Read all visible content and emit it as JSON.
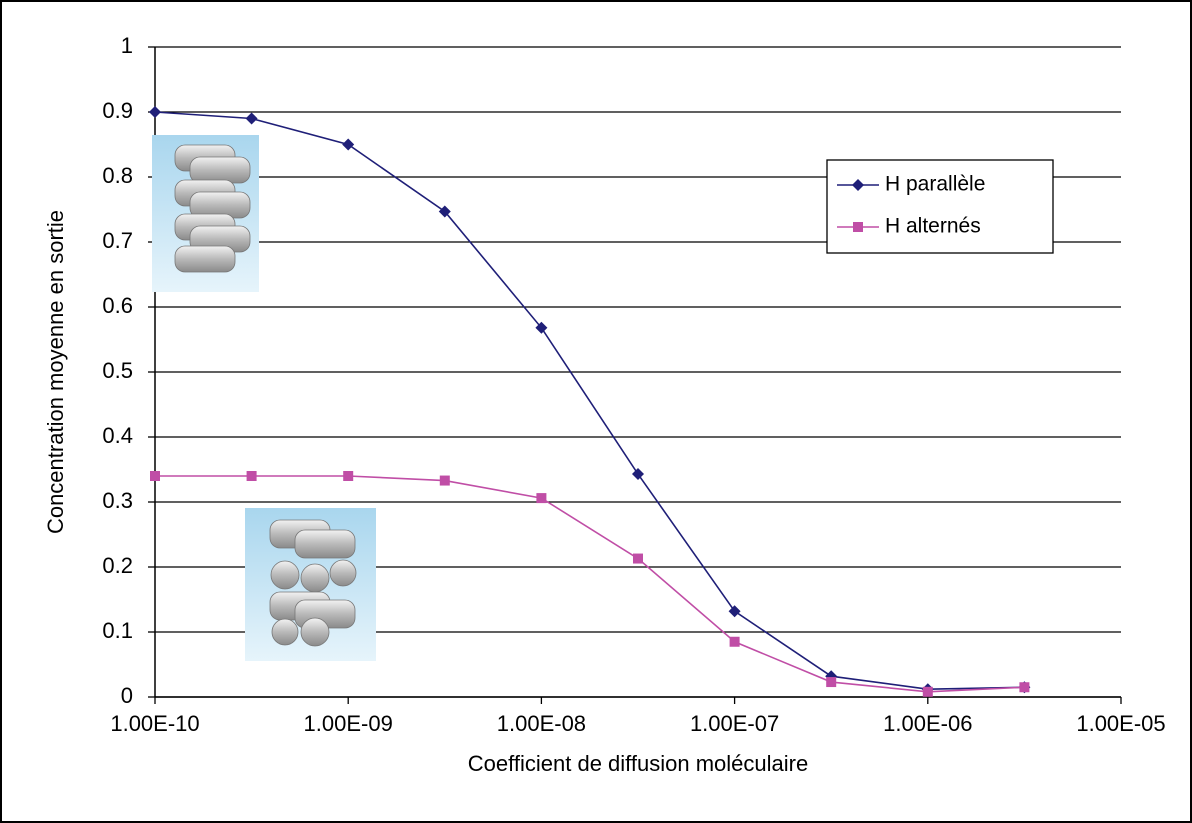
{
  "chart_data": {
    "type": "line",
    "x_label": "Coefficient de diffusion moléculaire",
    "y_label": "Concentration moyenne en sortie",
    "x": [
      1e-10,
      3.162e-10,
      1e-09,
      3.162e-09,
      1e-08,
      3.162e-08,
      1e-07,
      3.162e-07,
      1e-06,
      3.162e-06
    ],
    "series": [
      {
        "name": "H parallèle",
        "color": "#1f1f78",
        "marker": "diamond",
        "values": [
          0.9,
          0.89,
          0.85,
          0.747,
          0.568,
          0.343,
          0.132,
          0.032,
          0.012,
          0.015
        ]
      },
      {
        "name": "H alternés",
        "color": "#c04ea6",
        "marker": "square",
        "values": [
          0.34,
          0.34,
          0.34,
          0.333,
          0.306,
          0.213,
          0.085,
          0.023,
          0.008,
          0.015
        ]
      }
    ],
    "xlim": [
      1e-10,
      1e-05
    ],
    "xticks": [
      {
        "value": 1e-10,
        "label": "1.00E-10"
      },
      {
        "value": 1e-09,
        "label": "1.00E-09"
      },
      {
        "value": 1e-08,
        "label": "1.00E-08"
      },
      {
        "value": 1e-07,
        "label": "1.00E-07"
      },
      {
        "value": 1e-06,
        "label": "1.00E-06"
      },
      {
        "value": 1e-05,
        "label": "1.00E-05"
      }
    ],
    "ylim": [
      0,
      1
    ],
    "yticks": [
      0,
      0.1,
      0.2,
      0.3,
      0.4,
      0.5,
      0.6,
      0.7,
      0.8,
      0.9,
      1
    ],
    "x_log": true,
    "grid": true,
    "legend": "upper right"
  }
}
